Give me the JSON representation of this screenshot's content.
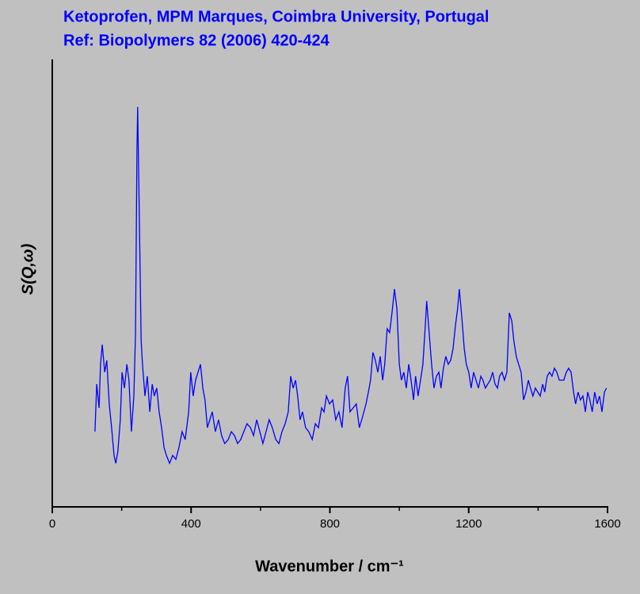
{
  "chart_data": {
    "type": "line",
    "title": "Ketoprofen, MPM Marques, Coimbra University, Portugal",
    "subtitle": "Ref: Biopolymers 82 (2006) 420-424",
    "xlabel": "Wavenumber / cm⁻¹",
    "ylabel": "S(Q,ω)",
    "color": "#0000ff",
    "xlim": [
      0,
      1600
    ],
    "xticks": [
      0,
      400,
      800,
      1200,
      1600
    ],
    "xminorticks": [
      200,
      600,
      1000,
      1400
    ],
    "ylim": [
      0,
      113
    ],
    "x": [
      123,
      128,
      135,
      139,
      144,
      151,
      157,
      164,
      171,
      178,
      183,
      189,
      196,
      201,
      208,
      215,
      221,
      228,
      235,
      240,
      244,
      246,
      251,
      256,
      260,
      267,
      274,
      281,
      288,
      294,
      301,
      308,
      315,
      322,
      329,
      338,
      347,
      356,
      365,
      374,
      383,
      393,
      399,
      406,
      413,
      420,
      427,
      434,
      440,
      447,
      454,
      461,
      470,
      479,
      488,
      497,
      507,
      516,
      525,
      534,
      543,
      552,
      561,
      571,
      580,
      589,
      598,
      607,
      616,
      625,
      634,
      644,
      653,
      662,
      671,
      680,
      687,
      694,
      701,
      707,
      714,
      721,
      730,
      739,
      749,
      758,
      767,
      776,
      783,
      790,
      799,
      808,
      817,
      826,
      835,
      844,
      851,
      858,
      867,
      876,
      885,
      895,
      904,
      911,
      917,
      924,
      931,
      938,
      945,
      952,
      958,
      965,
      972,
      979,
      986,
      993,
      1000,
      1006,
      1013,
      1020,
      1027,
      1034,
      1041,
      1047,
      1054,
      1061,
      1068,
      1075,
      1079,
      1086,
      1093,
      1100,
      1107,
      1114,
      1120,
      1127,
      1134,
      1141,
      1148,
      1155,
      1162,
      1168,
      1173,
      1180,
      1187,
      1193,
      1200,
      1207,
      1214,
      1221,
      1228,
      1235,
      1241,
      1248,
      1255,
      1262,
      1269,
      1276,
      1283,
      1289,
      1296,
      1303,
      1310,
      1317,
      1324,
      1330,
      1337,
      1344,
      1351,
      1358,
      1365,
      1372,
      1378,
      1385,
      1392,
      1399,
      1406,
      1413,
      1419,
      1426,
      1433,
      1440,
      1447,
      1454,
      1461,
      1467,
      1474,
      1481,
      1488,
      1495,
      1502,
      1508,
      1515,
      1522,
      1529,
      1536,
      1543,
      1549,
      1556,
      1563,
      1570,
      1577,
      1584,
      1591,
      1597
    ],
    "values": [
      19,
      31,
      25,
      36,
      41,
      34,
      37,
      26,
      20,
      13,
      11,
      14,
      22,
      34,
      30,
      36,
      32,
      19,
      28,
      44,
      90,
      101,
      72,
      42,
      36,
      28,
      33,
      24,
      31,
      28,
      30,
      24,
      20,
      15,
      13,
      11,
      13,
      12,
      15,
      19,
      17,
      24,
      34,
      28,
      32,
      34,
      36,
      30,
      27,
      20,
      22,
      24,
      19,
      22,
      18,
      16,
      17,
      19,
      18,
      16,
      17,
      19,
      21,
      20,
      18,
      22,
      19,
      16,
      19,
      22,
      20,
      17,
      16,
      19,
      21,
      24,
      33,
      30,
      32,
      28,
      22,
      24,
      20,
      19,
      17,
      21,
      20,
      25,
      24,
      28,
      26,
      27,
      22,
      24,
      20,
      30,
      33,
      24,
      25,
      26,
      20,
      23,
      26,
      29,
      32,
      39,
      37,
      34,
      38,
      32,
      36,
      45,
      44,
      49,
      55,
      50,
      36,
      32,
      34,
      30,
      36,
      32,
      27,
      33,
      28,
      32,
      36,
      46,
      52,
      44,
      36,
      30,
      33,
      34,
      30,
      35,
      38,
      36,
      37,
      40,
      46,
      50,
      55,
      48,
      40,
      36,
      34,
      30,
      34,
      32,
      30,
      33,
      32,
      30,
      31,
      32,
      34,
      31,
      30,
      33,
      34,
      32,
      34,
      49,
      47,
      42,
      38,
      36,
      34,
      27,
      29,
      32,
      30,
      28,
      30,
      29,
      28,
      31,
      29,
      33,
      34,
      33,
      35,
      34,
      32,
      32,
      32,
      34,
      35,
      34,
      29,
      26,
      29,
      27,
      28,
      24,
      29,
      27,
      24,
      29,
      26,
      28,
      24,
      29,
      30
    ]
  }
}
